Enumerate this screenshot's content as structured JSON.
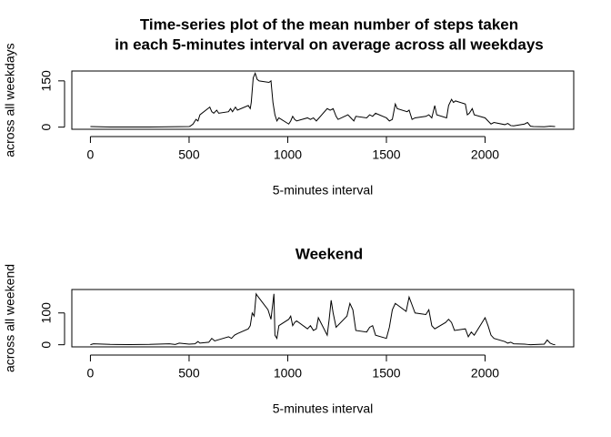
{
  "chart_data": [
    {
      "type": "line",
      "title": [
        "Time-series plot of the mean number of steps taken",
        "in each 5-minutes interval on average across all weekdays"
      ],
      "xlabel": "5-minutes interval",
      "ylabel": "across all weekdays",
      "xlim": [
        -94.2,
        2449.2
      ],
      "xticks": [
        0,
        500,
        1000,
        1500,
        2000
      ],
      "ylim": [
        -7,
        182
      ],
      "yticks": [
        0,
        150
      ],
      "x": [
        0,
        100,
        200,
        300,
        400,
        500,
        505,
        520,
        535,
        545,
        555,
        605,
        615,
        625,
        640,
        650,
        700,
        710,
        720,
        735,
        745,
        800,
        810,
        815,
        825,
        835,
        845,
        855,
        905,
        915,
        925,
        935,
        945,
        955,
        1005,
        1015,
        1025,
        1035,
        1045,
        1100,
        1115,
        1130,
        1145,
        1200,
        1215,
        1230,
        1245,
        1255,
        1305,
        1320,
        1335,
        1345,
        1400,
        1415,
        1430,
        1445,
        1500,
        1515,
        1530,
        1545,
        1555,
        1605,
        1615,
        1630,
        1645,
        1700,
        1715,
        1730,
        1745,
        1755,
        1805,
        1815,
        1830,
        1840,
        1850,
        1900,
        1910,
        1920,
        1935,
        1945,
        2000,
        2015,
        2030,
        2045,
        2100,
        2115,
        2130,
        2145,
        2200,
        2215,
        2230,
        2245,
        2300,
        2330,
        2355
      ],
      "series": [
        {
          "name": "weekday",
          "color": "#000000",
          "values": [
            2,
            0.5,
            0.3,
            0.2,
            1,
            2,
            3,
            10,
            25,
            20,
            40,
            65,
            50,
            45,
            55,
            45,
            50,
            60,
            50,
            65,
            55,
            70,
            60,
            80,
            160,
            175,
            155,
            150,
            145,
            150,
            80,
            40,
            20,
            30,
            10,
            20,
            35,
            25,
            20,
            30,
            25,
            30,
            20,
            60,
            55,
            60,
            35,
            25,
            40,
            30,
            20,
            35,
            30,
            40,
            35,
            45,
            30,
            20,
            25,
            75,
            60,
            50,
            55,
            25,
            30,
            35,
            40,
            30,
            70,
            40,
            30,
            70,
            90,
            80,
            85,
            75,
            40,
            45,
            60,
            40,
            30,
            20,
            10,
            15,
            8,
            12,
            5,
            4,
            10,
            15,
            3,
            2,
            1,
            3,
            2
          ]
        }
      ]
    },
    {
      "type": "line",
      "title": [
        "Weekend"
      ],
      "xlabel": "5-minutes interval",
      "ylabel": "across all weekend",
      "xlim": [
        -94.2,
        2449.2
      ],
      "xticks": [
        0,
        500,
        1000,
        1500,
        2000
      ],
      "ylim": [
        -6.7,
        173.7
      ],
      "yticks": [
        0,
        100
      ],
      "x": [
        0,
        15,
        100,
        200,
        300,
        400,
        430,
        450,
        500,
        530,
        545,
        555,
        600,
        615,
        630,
        645,
        700,
        715,
        730,
        745,
        800,
        810,
        820,
        830,
        840,
        845,
        900,
        915,
        930,
        935,
        945,
        955,
        1005,
        1015,
        1025,
        1035,
        1045,
        1100,
        1115,
        1130,
        1145,
        1155,
        1200,
        1210,
        1220,
        1230,
        1245,
        1300,
        1315,
        1330,
        1345,
        1400,
        1415,
        1430,
        1445,
        1500,
        1515,
        1530,
        1545,
        1600,
        1615,
        1630,
        1645,
        1700,
        1715,
        1730,
        1745,
        1800,
        1815,
        1830,
        1845,
        1900,
        1915,
        1930,
        1945,
        2000,
        2015,
        2030,
        2045,
        2100,
        2115,
        2130,
        2145,
        2200,
        2215,
        2230,
        2300,
        2315,
        2330,
        2345,
        2355
      ],
      "series": [
        {
          "name": "weekend",
          "color": "#000000",
          "values": [
            0,
            3,
            1,
            0.5,
            1,
            3,
            1,
            5,
            2,
            3,
            10,
            5,
            8,
            20,
            12,
            15,
            25,
            20,
            30,
            35,
            50,
            60,
            100,
            90,
            160,
            155,
            110,
            80,
            160,
            30,
            20,
            60,
            80,
            90,
            60,
            70,
            75,
            50,
            60,
            45,
            50,
            85,
            30,
            80,
            140,
            100,
            55,
            90,
            130,
            110,
            45,
            40,
            55,
            60,
            30,
            20,
            55,
            110,
            130,
            105,
            150,
            125,
            100,
            95,
            110,
            60,
            50,
            70,
            80,
            70,
            45,
            50,
            25,
            40,
            30,
            85,
            60,
            30,
            20,
            10,
            5,
            8,
            3,
            2,
            1,
            0,
            2,
            15,
            5,
            1,
            0
          ]
        }
      ]
    }
  ]
}
